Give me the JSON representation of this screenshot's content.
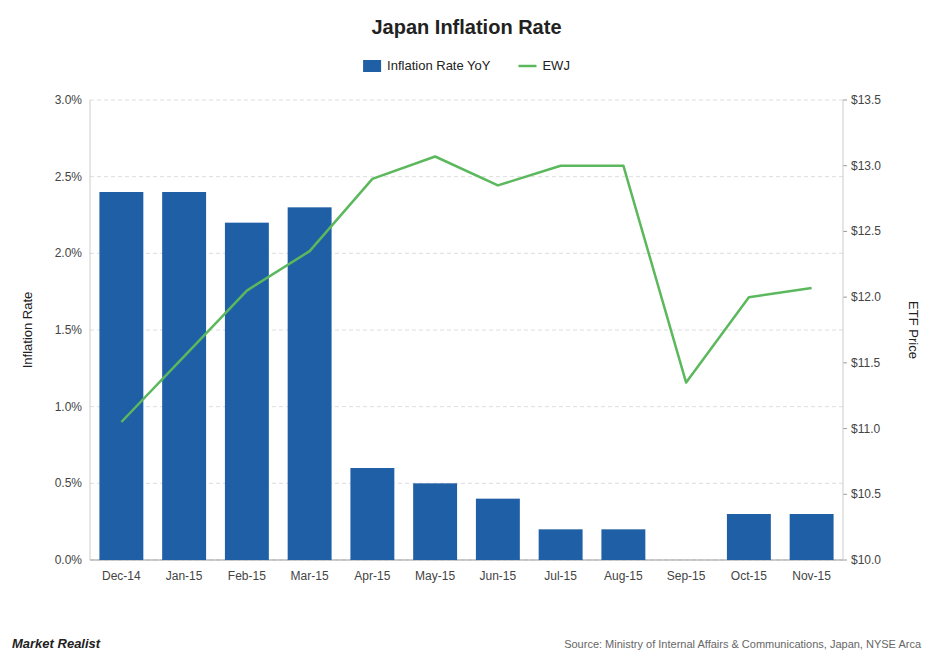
{
  "chart_data": {
    "type": "bar",
    "title": "Japan Inflation Rate",
    "categories": [
      "Dec-14",
      "Jan-15",
      "Feb-15",
      "Mar-15",
      "Apr-15",
      "May-15",
      "Jun-15",
      "Jul-15",
      "Aug-15",
      "Sep-15",
      "Oct-15",
      "Nov-15"
    ],
    "series": [
      {
        "name": "Inflation Rate YoY",
        "type": "bar",
        "color": "#1F5FA6",
        "values": [
          0.024,
          0.024,
          0.022,
          0.023,
          0.006,
          0.005,
          0.004,
          0.002,
          0.002,
          0.0,
          0.003,
          0.003
        ]
      },
      {
        "name": "EWJ",
        "type": "line",
        "color": "#5CB85C",
        "axis": "y2",
        "values": [
          11.05,
          11.55,
          12.05,
          12.35,
          12.9,
          13.07,
          12.85,
          13.0,
          13.0,
          11.35,
          12.0,
          12.07
        ]
      }
    ],
    "ylabel": "Inflation Rate",
    "y2label": "ETF Price",
    "ylim": [
      0.0,
      0.03
    ],
    "yticks": [
      {
        "value": 0.0,
        "label": "0.0%"
      },
      {
        "value": 0.005,
        "label": "0.5%"
      },
      {
        "value": 0.01,
        "label": "1.0%"
      },
      {
        "value": 0.015,
        "label": "1.5%"
      },
      {
        "value": 0.02,
        "label": "2.0%"
      },
      {
        "value": 0.025,
        "label": "2.5%"
      },
      {
        "value": 0.03,
        "label": "3.0%"
      }
    ],
    "y2lim": [
      10.0,
      13.5
    ],
    "y2ticks": [
      {
        "value": 10.0,
        "label": "$10.0"
      },
      {
        "value": 10.5,
        "label": "$10.5"
      },
      {
        "value": 11.0,
        "label": "$11.0"
      },
      {
        "value": 11.5,
        "label": "$11.5"
      },
      {
        "value": 12.0,
        "label": "$12.0"
      },
      {
        "value": 12.5,
        "label": "$12.5"
      },
      {
        "value": 13.0,
        "label": "$13.0"
      },
      {
        "value": 13.5,
        "label": "$13.5"
      }
    ],
    "grid": true,
    "legend": "top",
    "annotations": [
      "Source: Ministry of Internal  Affairs & Communications, Japan, NYSE Arca",
      "Market Realist"
    ]
  }
}
